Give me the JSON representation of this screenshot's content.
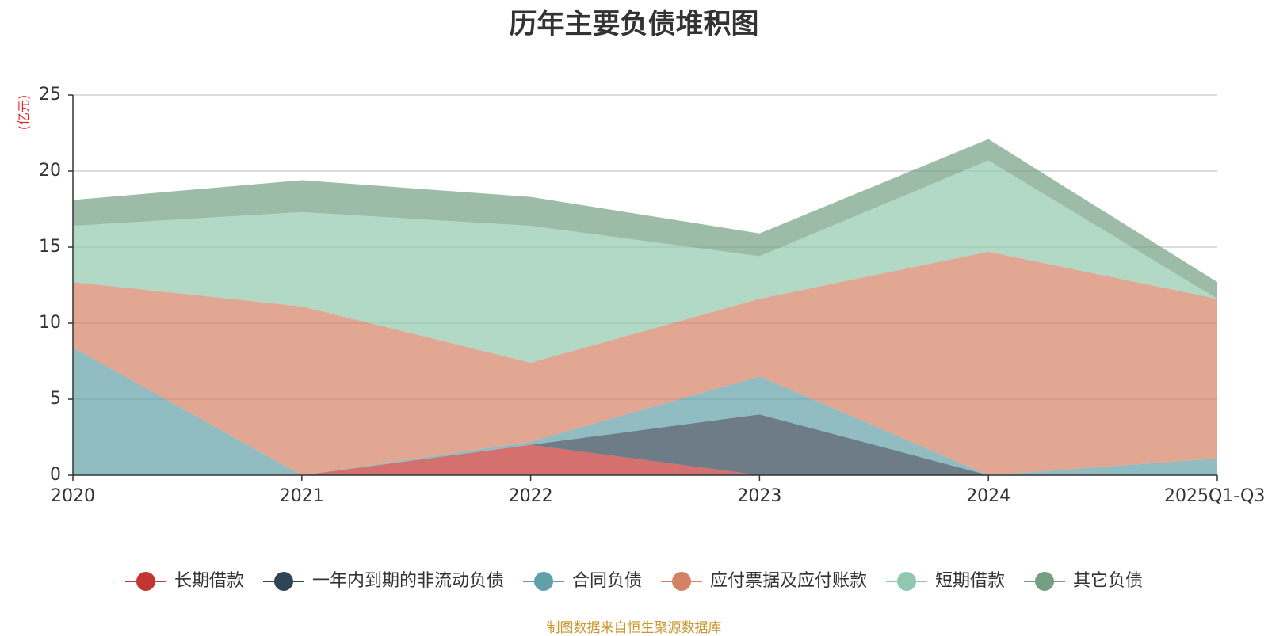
{
  "chart_data": {
    "type": "area",
    "stacked": true,
    "title": "历年主要负债堆积图",
    "ylabel": "(亿元)",
    "categories": [
      "2020",
      "2021",
      "2022",
      "2023",
      "2024",
      "2025Q1-Q3"
    ],
    "ylim": [
      0,
      25
    ],
    "yticks": [
      0,
      5,
      10,
      15,
      20,
      25
    ],
    "grid": true,
    "legend_position": "bottom",
    "series": [
      {
        "name": "长期借款",
        "color": "#c23531",
        "values": [
          0,
          0,
          2.0,
          0,
          0,
          0
        ]
      },
      {
        "name": "一年内到期的非流动负债",
        "color": "#2f4554",
        "values": [
          0,
          0,
          0,
          4.0,
          0,
          0
        ]
      },
      {
        "name": "合同负债",
        "color": "#61a0a8",
        "values": [
          8.4,
          0,
          0.2,
          2.5,
          0,
          1.1
        ]
      },
      {
        "name": "应付票据及应付账款",
        "color": "#d48265",
        "values": [
          4.3,
          11.1,
          5.2,
          5.1,
          14.7,
          10.5
        ]
      },
      {
        "name": "短期借款",
        "color": "#91c7ae",
        "values": [
          3.7,
          6.2,
          9.0,
          2.8,
          6.0,
          0
        ]
      },
      {
        "name": "其它负债",
        "color": "#749f83",
        "values": [
          1.7,
          2.1,
          1.9,
          1.5,
          1.4,
          1.1
        ]
      }
    ]
  },
  "source_note": "制图数据来自恒生聚源数据库"
}
